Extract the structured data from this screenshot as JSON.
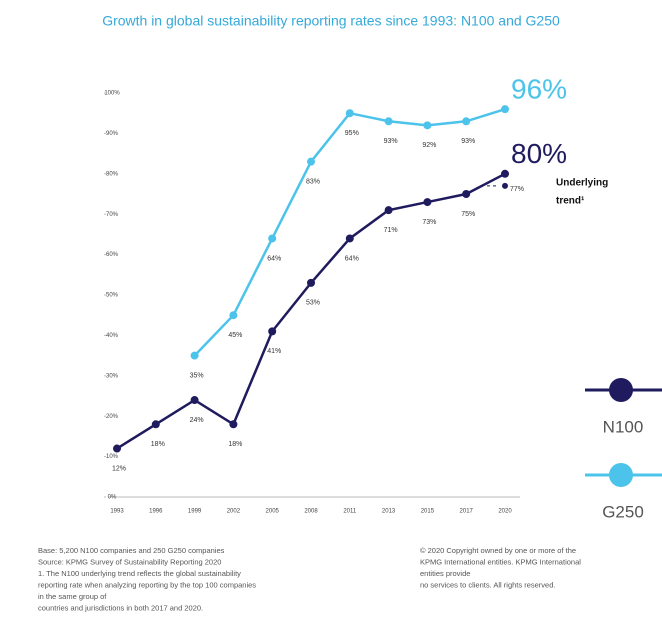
{
  "chart_data": {
    "type": "line",
    "title": "Growth in global sustainability reporting rates since 1993: N100 and G250",
    "categories": [
      "1993",
      "1996",
      "1999",
      "2002",
      "2005",
      "2008",
      "2011",
      "2013",
      "2015",
      "2017",
      "2020"
    ],
    "series": [
      {
        "name": "N100",
        "color": "#1f1b5e",
        "values": [
          12,
          18,
          24,
          18,
          41,
          53,
          64,
          71,
          73,
          75,
          80
        ],
        "value_labels": [
          "12%",
          "18%",
          "24%",
          "18%",
          "41%",
          "53%",
          "64%",
          "71%",
          "73%",
          "75%",
          "80%"
        ]
      },
      {
        "name": "G250",
        "color": "#4cc3ea",
        "values": [
          null,
          null,
          35,
          45,
          64,
          83,
          95,
          93,
          92,
          93,
          96
        ],
        "value_labels": [
          null,
          null,
          "35%",
          "45%",
          "64%",
          "83%",
          "95%",
          "93%",
          "92%",
          "93%",
          "96%"
        ]
      }
    ],
    "trend": {
      "text": [
        "Underlying",
        "trend¹"
      ],
      "value": 77,
      "value_label": "77%"
    },
    "ylim": [
      0,
      100
    ],
    "yticks": [
      {
        "value": 0,
        "label": "0%"
      },
      {
        "value": 10,
        "label": "10%"
      },
      {
        "value": 20,
        "label": "20%"
      },
      {
        "value": 30,
        "label": "30%"
      },
      {
        "value": 40,
        "label": "40%"
      },
      {
        "value": 50,
        "label": "50%"
      },
      {
        "value": 60,
        "label": "60%"
      },
      {
        "value": 70,
        "label": "70%"
      },
      {
        "value": 80,
        "label": "80%"
      },
      {
        "value": 90,
        "label": "90%"
      },
      {
        "value": 100,
        "label": "100%"
      }
    ],
    "notes_left": [
      "Base: 5,200 N100 companies and 250 G250 companies",
      "Source: KPMG Survey of Sustainability Reporting 2020",
      "1. The N100 underlying trend reflects the global sustainability",
      "reporting rate when analyzing reporting by the top 100 companies",
      "in the same group of",
      "countries and jurisdictions in both 2017 and 2020."
    ],
    "notes_right": [
      "© 2020 Copyright owned by one or more of the",
      "KPMG International entities. KPMG International",
      "entities provide",
      "no services to clients. All rights reserved."
    ]
  }
}
